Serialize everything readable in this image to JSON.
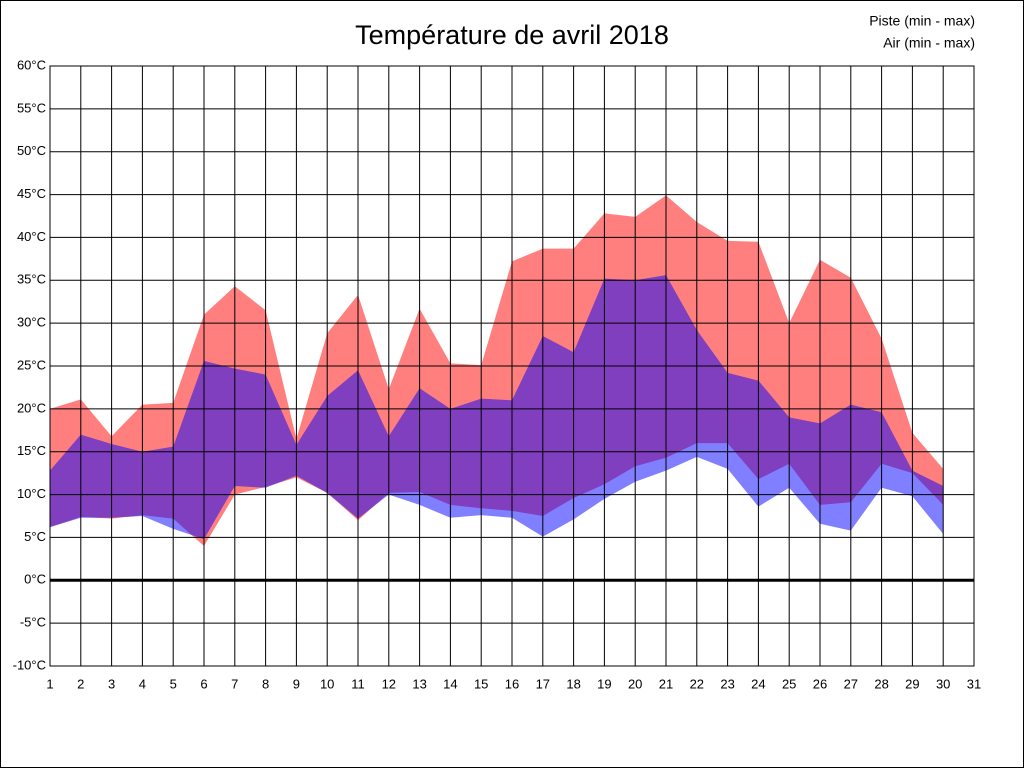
{
  "chart_data": {
    "type": "range-area",
    "title": "Température de avril 2018",
    "x": [
      1,
      2,
      3,
      4,
      5,
      6,
      7,
      8,
      9,
      10,
      11,
      12,
      13,
      14,
      15,
      16,
      17,
      18,
      19,
      20,
      21,
      22,
      23,
      24,
      25,
      26,
      27,
      28,
      29,
      30
    ],
    "series": [
      {
        "name": "Piste (min - max)",
        "color": "#ff0000",
        "min": [
          6.2,
          7.4,
          7.2,
          7.6,
          7.2,
          4.0,
          10.0,
          10.9,
          12.0,
          10.2,
          7.0,
          10.2,
          10.3,
          8.8,
          8.4,
          8.1,
          7.5,
          9.6,
          11.2,
          13.3,
          14.3,
          16.0,
          16.0,
          11.8,
          13.6,
          8.8,
          9.1,
          13.6,
          12.5,
          8.8
        ],
        "max": [
          20.0,
          21.1,
          16.8,
          20.5,
          20.7,
          31.0,
          34.3,
          31.5,
          16.5,
          28.8,
          33.3,
          22.3,
          31.7,
          25.3,
          25.1,
          37.2,
          38.7,
          38.7,
          42.8,
          42.4,
          44.9,
          41.8,
          39.6,
          39.5,
          30.0,
          37.4,
          35.3,
          28.2,
          17.2,
          13.0
        ]
      },
      {
        "name": "Air (min - max)",
        "color": "#0000ff",
        "min": [
          6.2,
          7.3,
          7.3,
          7.5,
          6.0,
          4.8,
          11.0,
          10.8,
          12.2,
          10.2,
          7.2,
          10.0,
          8.8,
          7.3,
          7.6,
          7.3,
          5.1,
          7.1,
          9.5,
          11.5,
          12.8,
          14.4,
          13.0,
          8.6,
          10.8,
          6.6,
          5.8,
          10.8,
          9.8,
          5.4
        ],
        "max": [
          12.8,
          17.0,
          15.9,
          15.0,
          15.6,
          25.6,
          24.7,
          24.0,
          15.8,
          21.5,
          24.5,
          16.8,
          22.4,
          20.0,
          21.2,
          21.0,
          28.5,
          26.6,
          35.2,
          35.0,
          35.6,
          29.2,
          24.2,
          23.3,
          19.0,
          18.3,
          20.5,
          19.6,
          12.8,
          11.0
        ]
      }
    ],
    "xlim": [
      1,
      31
    ],
    "xticks": [
      1,
      2,
      3,
      4,
      5,
      6,
      7,
      8,
      9,
      10,
      11,
      12,
      13,
      14,
      15,
      16,
      17,
      18,
      19,
      20,
      21,
      22,
      23,
      24,
      25,
      26,
      27,
      28,
      29,
      30,
      31
    ],
    "ylim": [
      -10,
      60
    ],
    "yticks": [
      {
        "value": -10,
        "label": "-10°C"
      },
      {
        "value": -5,
        "label": "-5°C"
      },
      {
        "value": 0,
        "label": "0°C"
      },
      {
        "value": 5,
        "label": "5°C"
      },
      {
        "value": 10,
        "label": "10°C"
      },
      {
        "value": 15,
        "label": "15°C"
      },
      {
        "value": 20,
        "label": "20°C"
      },
      {
        "value": 25,
        "label": "25°C"
      },
      {
        "value": 30,
        "label": "30°C"
      },
      {
        "value": 35,
        "label": "35°C"
      },
      {
        "value": 40,
        "label": "40°C"
      },
      {
        "value": 45,
        "label": "45°C"
      },
      {
        "value": 50,
        "label": "50°C"
      },
      {
        "value": 55,
        "label": "55°C"
      },
      {
        "value": 60,
        "label": "60°C"
      }
    ],
    "grid": true,
    "legend": "top-right"
  }
}
